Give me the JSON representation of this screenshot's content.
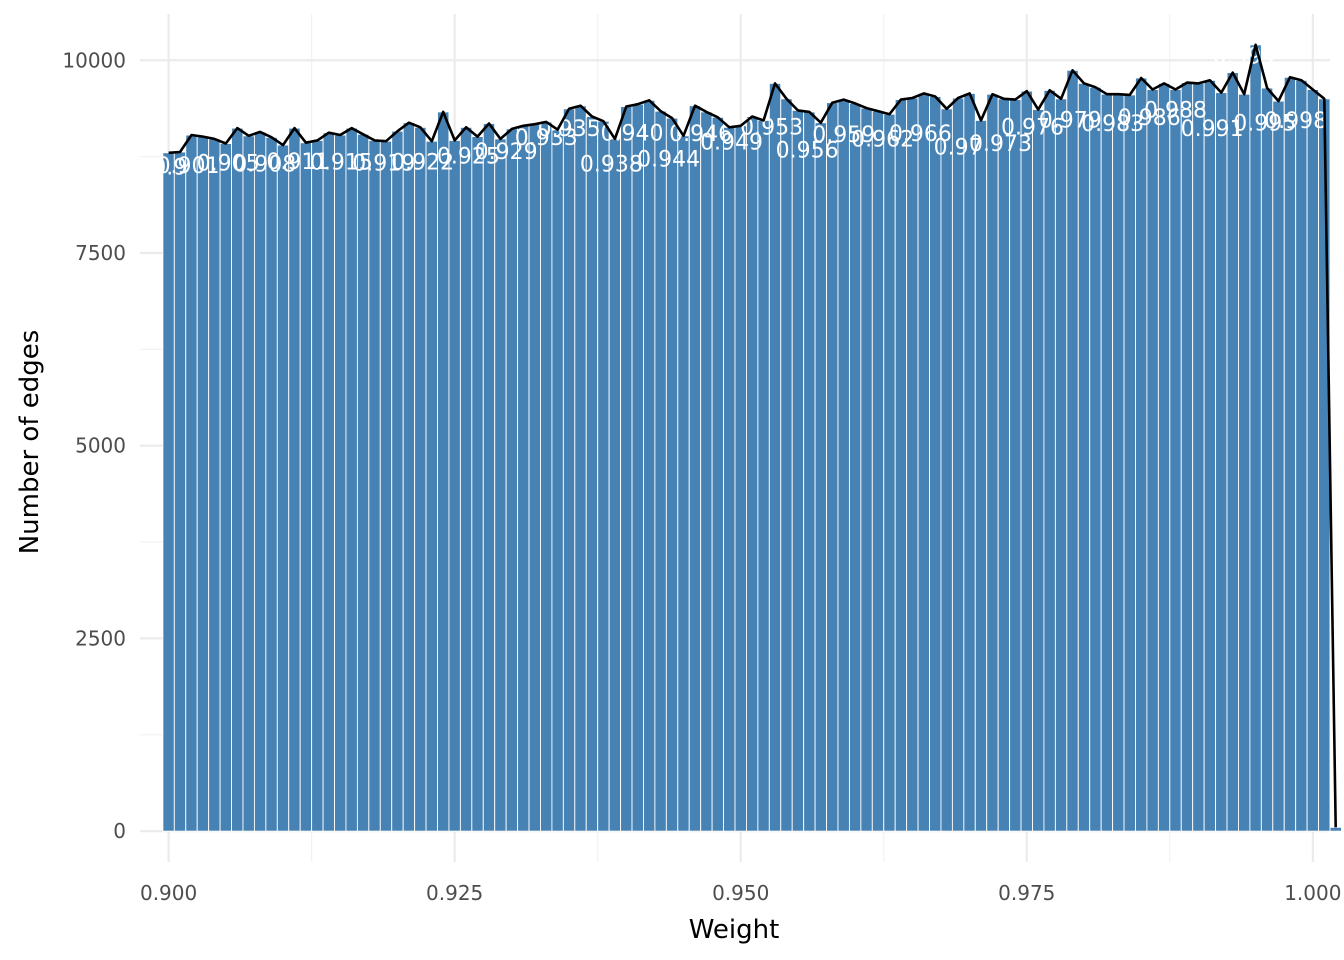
{
  "chart_data": {
    "type": "bar",
    "title": "",
    "xlabel": "Weight",
    "ylabel": "Number of edges",
    "xlim": [
      0.8975,
      1.0015
    ],
    "ylim": [
      -400,
      10600
    ],
    "x_ticks": [
      0.9,
      0.925,
      0.95,
      0.975,
      1.0
    ],
    "x_tick_labels": [
      "0.900",
      "0.925",
      "0.950",
      "0.975",
      "1.000"
    ],
    "y_ticks": [
      0,
      2500,
      5000,
      7500,
      10000
    ],
    "y_tick_labels": [
      "0",
      "2500",
      "5000",
      "7500",
      "10000"
    ],
    "grid": true,
    "bin_start": 0.8995,
    "bin_width": 0.001,
    "bar_color": "#4682b4",
    "line_color": "#000000",
    "label_color": "#ffffff",
    "values": [
      8800,
      8810,
      9030,
      9010,
      8980,
      8920,
      9120,
      9020,
      9070,
      9000,
      8900,
      9120,
      8930,
      8960,
      9060,
      9030,
      9120,
      9040,
      8960,
      8950,
      9080,
      9190,
      9130,
      8950,
      9330,
      8960,
      9130,
      9010,
      9180,
      8980,
      9110,
      9150,
      9170,
      9200,
      9100,
      9370,
      9410,
      9270,
      9210,
      8980,
      9400,
      9430,
      9480,
      9340,
      9250,
      9020,
      9410,
      9330,
      9260,
      9130,
      9150,
      9270,
      9220,
      9700,
      9500,
      9350,
      9330,
      9190,
      9450,
      9490,
      9440,
      9380,
      9340,
      9300,
      9490,
      9510,
      9570,
      9530,
      9370,
      9510,
      9570,
      9220,
      9560,
      9500,
      9490,
      9600,
      9360,
      9610,
      9500,
      9870,
      9700,
      9650,
      9560,
      9560,
      9550,
      9770,
      9620,
      9700,
      9620,
      9710,
      9700,
      9740,
      9580,
      9840,
      9560,
      10200,
      9640,
      9470,
      9780,
      9740,
      9620,
      9500,
      50
    ],
    "bar_labels": [
      {
        "text": "0.9",
        "x": 0.9001,
        "y": 8520
      },
      {
        "text": "0.901",
        "x": 0.9017,
        "y": 8540
      },
      {
        "text": "0.905",
        "x": 0.9052,
        "y": 8570
      },
      {
        "text": "0.908",
        "x": 0.9084,
        "y": 8560
      },
      {
        "text": "0.911",
        "x": 0.9113,
        "y": 8590
      },
      {
        "text": "0.915",
        "x": 0.9151,
        "y": 8580
      },
      {
        "text": "0.919",
        "x": 0.9188,
        "y": 8570
      },
      {
        "text": "0.922",
        "x": 0.9222,
        "y": 8580
      },
      {
        "text": "0.925",
        "x": 0.9262,
        "y": 8660
      },
      {
        "text": "0.929",
        "x": 0.9295,
        "y": 8720
      },
      {
        "text": "0.933",
        "x": 0.933,
        "y": 8900
      },
      {
        "text": "0.935",
        "x": 0.935,
        "y": 9020
      },
      {
        "text": "0.938",
        "x": 0.9387,
        "y": 8560
      },
      {
        "text": "0.940",
        "x": 0.9405,
        "y": 8960
      },
      {
        "text": "0.944",
        "x": 0.9437,
        "y": 8620
      },
      {
        "text": "0.946",
        "x": 0.9465,
        "y": 8950
      },
      {
        "text": "0.949",
        "x": 0.9492,
        "y": 8840
      },
      {
        "text": "0.953",
        "x": 0.9527,
        "y": 9040
      },
      {
        "text": "0.956",
        "x": 0.9558,
        "y": 8740
      },
      {
        "text": "0.959",
        "x": 0.959,
        "y": 8940
      },
      {
        "text": "0.962",
        "x": 0.9624,
        "y": 8880
      },
      {
        "text": "0.966",
        "x": 0.9657,
        "y": 8950
      },
      {
        "text": "0.97",
        "x": 0.969,
        "y": 8780
      },
      {
        "text": "0.973",
        "x": 0.9727,
        "y": 8820
      },
      {
        "text": "0.976",
        "x": 0.9755,
        "y": 9040
      },
      {
        "text": "0.979",
        "x": 0.9788,
        "y": 9130
      },
      {
        "text": "0.983",
        "x": 0.9825,
        "y": 9080
      },
      {
        "text": "0.986",
        "x": 0.9857,
        "y": 9160
      },
      {
        "text": "0.988",
        "x": 0.988,
        "y": 9260
      },
      {
        "text": "0.991",
        "x": 0.9912,
        "y": 9020
      },
      {
        "text": "0.994",
        "x": 0.994,
        "y": 9960
      },
      {
        "text": "0.995",
        "x": 0.9958,
        "y": 9090
      },
      {
        "text": "0.998",
        "x": 0.9985,
        "y": 9120
      }
    ]
  }
}
